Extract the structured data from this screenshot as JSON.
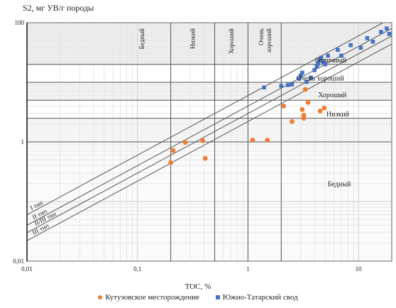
{
  "chart_data": {
    "type": "scatter",
    "ylabel": "S2, мг УВ/г породы",
    "xlabel": "TOC, %",
    "xscale": "log",
    "yscale": "log",
    "xlim": [
      0.01,
      20
    ],
    "ylim": [
      0.01,
      100
    ],
    "x_ticks": [
      "0,01",
      "0,1",
      "1",
      "10"
    ],
    "y_ticks": [
      "100",
      "1",
      "0,01"
    ],
    "toc_classes": [
      "Бедный",
      "Низкий",
      "Хороший",
      "Очень хороший"
    ],
    "s2_classes": [
      "Отличный",
      "Очень хороший",
      "Хороший",
      "Низкий",
      "Бедный"
    ],
    "kerogen_lines": [
      "I тип",
      "II тип",
      "II/III тип",
      "III тип"
    ],
    "series": [
      {
        "name": "Кутузовское месторождение",
        "color": "#ed7d31",
        "points": [
          [
            0.2,
            0.45
          ],
          [
            0.21,
            0.72
          ],
          [
            0.27,
            0.98
          ],
          [
            0.39,
            1.05
          ],
          [
            0.41,
            0.53
          ],
          [
            1.1,
            1.07
          ],
          [
            1.5,
            1.07
          ],
          [
            2.1,
            4.0
          ],
          [
            2.5,
            2.2
          ],
          [
            3.1,
            3.5
          ],
          [
            3.2,
            2.8
          ],
          [
            3.2,
            2.5
          ],
          [
            3.3,
            7.6
          ],
          [
            3.5,
            4.6
          ],
          [
            4.5,
            3.3
          ],
          [
            4.9,
            3.7
          ]
        ]
      },
      {
        "name": "Южно-Татарский свод",
        "color": "#4472c4",
        "points": [
          [
            1.4,
            8.2
          ],
          [
            2.0,
            8.7
          ],
          [
            2.3,
            9.0
          ],
          [
            2.5,
            9.2
          ],
          [
            2.9,
            11.5
          ],
          [
            3.0,
            13.0
          ],
          [
            3.1,
            14.5
          ],
          [
            3.4,
            10.2
          ],
          [
            3.7,
            12.0
          ],
          [
            4.0,
            16.0
          ],
          [
            4.2,
            18.5
          ],
          [
            4.3,
            20.5
          ],
          [
            4.4,
            23.0
          ],
          [
            4.6,
            26.0
          ],
          [
            4.8,
            22.0
          ],
          [
            5.0,
            20.0
          ],
          [
            5.3,
            28.0
          ],
          [
            6.5,
            35.0
          ],
          [
            7.0,
            28.0
          ],
          [
            8.5,
            42.0
          ],
          [
            10.5,
            38.0
          ],
          [
            12.0,
            55.0
          ],
          [
            13.5,
            48.0
          ],
          [
            16.0,
            70.0
          ],
          [
            18.0,
            80.0
          ],
          [
            19.0,
            65.0
          ]
        ]
      }
    ]
  }
}
